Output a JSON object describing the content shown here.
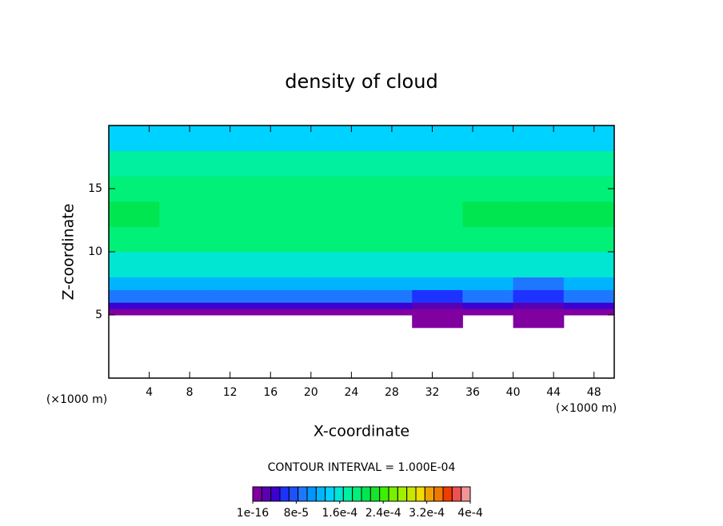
{
  "chart_data": {
    "type": "contour",
    "title": "density of cloud",
    "x_label": "X-coordinate",
    "y_label": "Z-coordinate",
    "x_unit": "(×1000 m)",
    "y_unit": "(×1000 m)",
    "annotation": "CONTOUR INTERVAL = 1.000E-04",
    "xlim": [
      0,
      50
    ],
    "ylim": [
      0,
      20
    ],
    "xticks": [
      4,
      8,
      12,
      16,
      20,
      24,
      28,
      32,
      36,
      40,
      44,
      48
    ],
    "yticks": [
      5,
      10,
      15
    ],
    "x_edges": [
      0,
      5,
      10,
      15,
      20,
      25,
      30,
      35,
      40,
      45,
      50
    ],
    "y_edges": [
      4,
      5,
      5.5,
      6,
      7,
      8,
      10,
      12,
      14,
      16,
      18,
      20
    ],
    "values": [
      [
        null,
        null,
        null,
        null,
        null,
        null,
        1e-05,
        null,
        1e-05,
        null
      ],
      [
        1e-05,
        1e-05,
        1e-05,
        1e-05,
        1e-05,
        1e-05,
        1e-05,
        1e-05,
        1e-05,
        1e-05
      ],
      [
        5e-05,
        5e-05,
        5e-05,
        5e-05,
        5e-05,
        5e-05,
        3e-05,
        5e-05,
        3e-05,
        5e-05
      ],
      [
        9e-05,
        9e-05,
        9e-05,
        9e-05,
        9e-05,
        9e-05,
        6e-05,
        9e-05,
        6e-05,
        9e-05
      ],
      [
        0.00013,
        0.00013,
        0.00013,
        0.00013,
        0.00013,
        0.00013,
        0.00012,
        0.00013,
        0.0001,
        0.00013
      ],
      [
        0.00016,
        0.00016,
        0.00016,
        0.00016,
        0.00016,
        0.00016,
        0.00016,
        0.00016,
        0.00016,
        0.00016
      ],
      [
        0.00019,
        0.0002,
        0.00019,
        0.00019,
        0.00019,
        0.00019,
        0.00019,
        0.00019,
        0.00019,
        0.00019
      ],
      [
        0.00021,
        0.0002,
        0.0002,
        0.0002,
        0.00019,
        0.00019,
        0.0002,
        0.00021,
        0.00021,
        0.00021
      ],
      [
        0.00019,
        0.00019,
        0.00019,
        0.00019,
        0.00019,
        0.00019,
        0.00019,
        0.00019,
        0.00019,
        0.00019
      ],
      [
        0.00017,
        0.00017,
        0.00017,
        0.00017,
        0.00017,
        0.00017,
        0.00017,
        0.00017,
        0.00017,
        0.00017
      ],
      [
        0.00015,
        0.00015,
        0.00015,
        0.00015,
        0.00015,
        0.00015,
        0.00015,
        0.00015,
        0.00015,
        0.00015
      ]
    ],
    "colorbar": {
      "clim": [
        1e-16,
        0.0004
      ],
      "colors": [
        "#8000a0",
        "#5a00b4",
        "#3c00d2",
        "#1e32ff",
        "#1e50ff",
        "#1e78ff",
        "#0096ff",
        "#00b4ff",
        "#00d2ff",
        "#00e6d2",
        "#00f0a0",
        "#00f078",
        "#00e650",
        "#14e628",
        "#3cf000",
        "#78f000",
        "#a0f000",
        "#c8e600",
        "#f0dc00",
        "#f0a000",
        "#f07800",
        "#f03c00",
        "#f05050",
        "#f09696"
      ],
      "ticks": [
        1e-16,
        {
          "value": 8e-05,
          "label": "8e-5"
        },
        {
          "value": 0.00016,
          "label": "1.6e-4"
        },
        {
          "value": 0.00024,
          "label": "2.4e-4"
        },
        {
          "value": 0.00032,
          "label": "3.2e-4"
        },
        {
          "value": 0.0004,
          "label": "4e-4"
        }
      ]
    }
  }
}
